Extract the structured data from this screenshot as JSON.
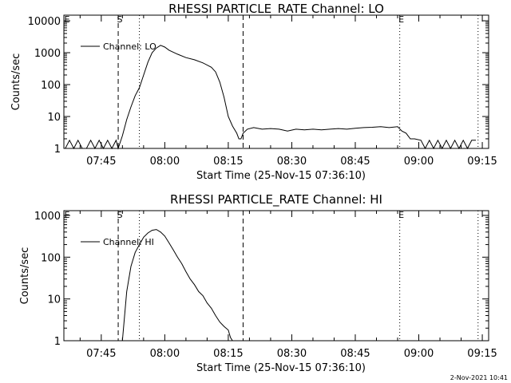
{
  "timestamp": "2-Nov-2021 10:41",
  "chart_data": [
    {
      "type": "line",
      "title": "RHESSI PARTICLE_RATE Channel: LO",
      "xlabel": "Start Time (25-Nov-15 07:36:10)",
      "ylabel": "Counts/sec",
      "yscale": "log",
      "ylim": [
        1,
        15000
      ],
      "xlim": [
        "07:36:10",
        "09:16:30"
      ],
      "xticks": [
        "07:45",
        "08:00",
        "08:15",
        "08:30",
        "08:45",
        "09:00",
        "09:15"
      ],
      "yticks": [
        "1",
        "10",
        "100",
        "1000",
        "10000"
      ],
      "legend": {
        "position": "top-left",
        "label": "Channel: LO"
      },
      "markers": [
        {
          "label": "S",
          "time": "07:49:00",
          "style": "dashed"
        },
        {
          "label": "",
          "time": "07:54:00",
          "style": "dotted"
        },
        {
          "label": "",
          "time": "08:18:30",
          "style": "dashed"
        },
        {
          "label": "E",
          "time": "08:55:30",
          "style": "dotted"
        },
        {
          "label": "",
          "time": "09:14:00",
          "style": "dotted"
        }
      ],
      "series": [
        {
          "name": "Channel: LO",
          "x": [
            "07:36:30",
            "07:37:30",
            "07:38:30",
            "07:39:30",
            "07:40:30",
            "07:41:30",
            "07:42:30",
            "07:43:30",
            "07:44:30",
            "07:45:30",
            "07:46:30",
            "07:47:30",
            "07:48:30",
            "07:49:00",
            "07:50:00",
            "07:51:00",
            "07:52:00",
            "07:53:00",
            "07:54:00",
            "07:55:00",
            "07:56:00",
            "07:57:00",
            "07:58:00",
            "07:59:00",
            "08:00:00",
            "08:01:00",
            "08:03:00",
            "08:05:00",
            "08:07:00",
            "08:09:00",
            "08:11:00",
            "08:12:00",
            "08:13:00",
            "08:14:00",
            "08:15:00",
            "08:16:00",
            "08:17:00",
            "08:17:30",
            "08:18:00",
            "08:18:30",
            "08:19:30",
            "08:21:00",
            "08:23:00",
            "08:25:00",
            "08:27:00",
            "08:29:00",
            "08:31:00",
            "08:33:00",
            "08:35:00",
            "08:37:00",
            "08:39:00",
            "08:41:00",
            "08:43:00",
            "08:45:00",
            "08:47:00",
            "08:49:00",
            "08:51:00",
            "08:53:00",
            "08:55:00",
            "08:56:00",
            "08:57:00",
            "08:58:00",
            "08:59:00",
            "09:00:30",
            "09:01:30",
            "09:02:30",
            "09:03:30",
            "09:04:30",
            "09:05:30",
            "09:06:30",
            "09:07:30",
            "09:08:30",
            "09:09:30",
            "09:10:30",
            "09:11:30",
            "09:12:30",
            "09:13:30"
          ],
          "y": [
            1,
            1.8,
            1,
            1.8,
            1,
            1,
            1.8,
            1,
            1.8,
            1,
            1.8,
            1,
            1.8,
            1,
            2.5,
            8,
            20,
            45,
            80,
            200,
            500,
            1000,
            1400,
            1700,
            1500,
            1200,
            900,
            700,
            600,
            480,
            350,
            250,
            120,
            40,
            10,
            5,
            3,
            2,
            2,
            3,
            4,
            4.5,
            4,
            4.2,
            4,
            3.5,
            4,
            3.8,
            4,
            3.8,
            4,
            4.2,
            4,
            4.3,
            4.5,
            4.6,
            4.8,
            4.5,
            4.8,
            3.5,
            3,
            2,
            2,
            1.8,
            1,
            1.8,
            1,
            1.8,
            1,
            1.8,
            1,
            1.8,
            1,
            1.8,
            1,
            1.8,
            1.8
          ]
        }
      ]
    },
    {
      "type": "line",
      "title": "RHESSI PARTICLE_RATE Channel: HI",
      "xlabel": "Start Time (25-Nov-15 07:36:10)",
      "ylabel": "Counts/sec",
      "yscale": "log",
      "ylim": [
        1,
        1300
      ],
      "xlim": [
        "07:36:10",
        "09:16:30"
      ],
      "xticks": [
        "07:45",
        "08:00",
        "08:15",
        "08:30",
        "08:45",
        "09:00",
        "09:15"
      ],
      "yticks": [
        "1",
        "10",
        "100",
        "1000"
      ],
      "legend": {
        "position": "top-left",
        "label": "Channel: HI"
      },
      "markers": [
        {
          "label": "S",
          "time": "07:49:00",
          "style": "dashed"
        },
        {
          "label": "",
          "time": "07:54:00",
          "style": "dotted"
        },
        {
          "label": "",
          "time": "08:18:30",
          "style": "dashed"
        },
        {
          "label": "E",
          "time": "08:55:30",
          "style": "dotted"
        },
        {
          "label": "",
          "time": "09:14:00",
          "style": "dotted"
        }
      ],
      "series": [
        {
          "name": "Channel: HI",
          "x": [
            "07:50:00",
            "07:51:00",
            "07:52:00",
            "07:53:00",
            "07:54:00",
            "07:55:00",
            "07:56:00",
            "07:57:00",
            "07:58:00",
            "07:59:00",
            "08:00:00",
            "08:01:00",
            "08:02:00",
            "08:03:00",
            "08:04:00",
            "08:05:00",
            "08:06:00",
            "08:07:00",
            "08:08:00",
            "08:09:00",
            "08:10:00",
            "08:11:00",
            "08:12:00",
            "08:13:00",
            "08:14:00",
            "08:15:00",
            "08:15:30",
            "08:16:00"
          ],
          "y": [
            1,
            15,
            60,
            130,
            200,
            300,
            380,
            440,
            460,
            400,
            320,
            220,
            150,
            100,
            70,
            45,
            30,
            22,
            15,
            12,
            8,
            6,
            4,
            2.8,
            2.2,
            1.8,
            1.2,
            1
          ]
        }
      ]
    }
  ]
}
